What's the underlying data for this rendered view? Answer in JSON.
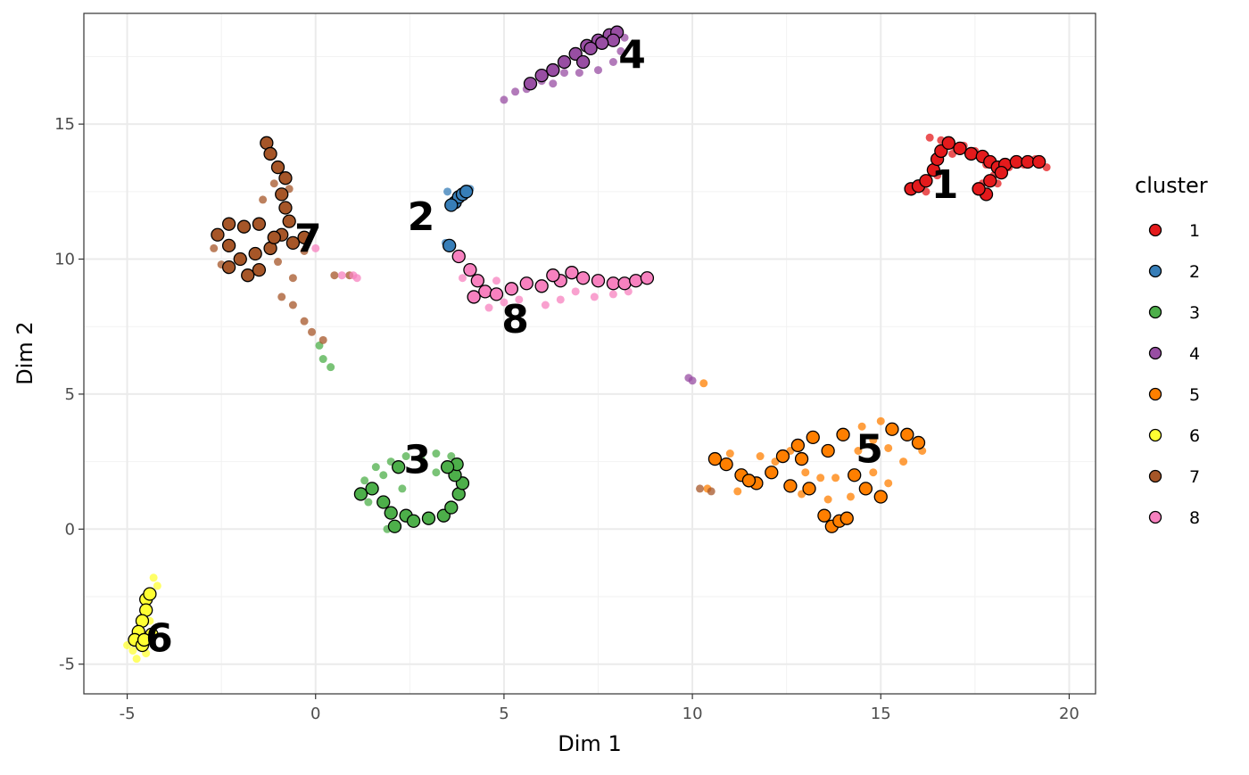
{
  "chart_data": {
    "type": "scatter",
    "title": "",
    "xlabel": "Dim 1",
    "ylabel": "Dim 2",
    "xlim": [
      -6.15,
      20.7
    ],
    "ylim": [
      -6.1,
      19.1
    ],
    "x_ticks": [
      -5,
      0,
      5,
      10,
      15,
      20
    ],
    "x_tick_labels": [
      "-5",
      "0",
      "5",
      "10",
      "15",
      "20"
    ],
    "y_ticks": [
      -5,
      0,
      5,
      10,
      15
    ],
    "y_tick_labels": [
      "-5",
      "0",
      "5",
      "10",
      "15"
    ],
    "grid": true,
    "legend": {
      "title": "cluster",
      "placement": "right"
    },
    "series": [
      {
        "name": "1",
        "color": "#E41A1C",
        "label": "1",
        "label_pos": [
          16.7,
          12.8
        ],
        "outlined": [
          [
            15.8,
            12.6
          ],
          [
            16.0,
            12.7
          ],
          [
            16.2,
            12.9
          ],
          [
            16.4,
            13.3
          ],
          [
            16.5,
            13.7
          ],
          [
            16.6,
            14.0
          ],
          [
            16.8,
            14.3
          ],
          [
            17.1,
            14.1
          ],
          [
            17.4,
            13.9
          ],
          [
            17.7,
            13.8
          ],
          [
            17.9,
            13.6
          ],
          [
            18.1,
            13.4
          ],
          [
            18.3,
            13.5
          ],
          [
            18.6,
            13.6
          ],
          [
            18.9,
            13.6
          ],
          [
            19.2,
            13.6
          ],
          [
            17.8,
            12.4
          ],
          [
            17.6,
            12.6
          ],
          [
            17.9,
            12.9
          ],
          [
            18.2,
            13.2
          ]
        ],
        "points": [
          [
            16.3,
            14.5
          ],
          [
            16.6,
            14.4
          ],
          [
            16.9,
            14.2
          ],
          [
            17.2,
            14.2
          ],
          [
            17.5,
            14.0
          ],
          [
            17.8,
            13.5
          ],
          [
            18.0,
            13.1
          ],
          [
            18.4,
            13.4
          ],
          [
            18.8,
            13.5
          ],
          [
            19.1,
            13.7
          ],
          [
            19.4,
            13.4
          ],
          [
            16.5,
            13.1
          ],
          [
            16.2,
            12.5
          ],
          [
            16.9,
            13.9
          ],
          [
            17.7,
            12.8
          ],
          [
            18.1,
            12.8
          ]
        ]
      },
      {
        "name": "2",
        "color": "#377EB8",
        "label": "2",
        "label_pos": [
          2.8,
          11.6
        ],
        "outlined": [
          [
            3.7,
            12.1
          ],
          [
            3.8,
            12.3
          ],
          [
            3.9,
            12.4
          ],
          [
            4.0,
            12.5
          ],
          [
            3.6,
            12.0
          ],
          [
            3.55,
            10.5
          ]
        ],
        "points": [
          [
            3.5,
            12.5
          ],
          [
            4.1,
            12.6
          ],
          [
            3.45,
            10.6
          ]
        ]
      },
      {
        "name": "3",
        "color": "#4DAF4A",
        "label": "3",
        "label_pos": [
          2.7,
          2.6
        ],
        "outlined": [
          [
            1.2,
            1.3
          ],
          [
            1.5,
            1.5
          ],
          [
            1.8,
            1.0
          ],
          [
            2.0,
            0.6
          ],
          [
            2.2,
            2.3
          ],
          [
            2.4,
            0.5
          ],
          [
            2.1,
            0.1
          ],
          [
            2.6,
            0.3
          ],
          [
            3.0,
            0.4
          ],
          [
            3.4,
            0.5
          ],
          [
            3.6,
            0.8
          ],
          [
            3.8,
            1.3
          ],
          [
            3.9,
            1.7
          ],
          [
            3.7,
            2.0
          ],
          [
            3.75,
            2.4
          ],
          [
            3.5,
            2.3
          ]
        ],
        "points": [
          [
            1.6,
            2.3
          ],
          [
            1.8,
            2.0
          ],
          [
            2.0,
            2.5
          ],
          [
            2.4,
            2.7
          ],
          [
            2.8,
            2.6
          ],
          [
            3.2,
            2.8
          ],
          [
            3.6,
            2.7
          ],
          [
            1.3,
            1.8
          ],
          [
            1.4,
            1.0
          ],
          [
            1.9,
            0.0
          ],
          [
            2.3,
            1.5
          ],
          [
            3.2,
            2.1
          ],
          [
            0.2,
            6.3
          ],
          [
            0.4,
            6.0
          ],
          [
            0.1,
            6.8
          ]
        ]
      },
      {
        "name": "4",
        "color": "#984EA3",
        "label": "4",
        "label_pos": [
          8.4,
          17.6
        ],
        "outlined": [
          [
            5.7,
            16.5
          ],
          [
            6.0,
            16.8
          ],
          [
            6.3,
            17.0
          ],
          [
            6.6,
            17.3
          ],
          [
            6.9,
            17.6
          ],
          [
            7.2,
            17.9
          ],
          [
            7.5,
            18.1
          ],
          [
            7.8,
            18.3
          ],
          [
            8.0,
            18.4
          ],
          [
            7.9,
            18.1
          ],
          [
            7.6,
            18.0
          ],
          [
            7.3,
            17.8
          ],
          [
            7.1,
            17.3
          ]
        ],
        "points": [
          [
            5.0,
            15.9
          ],
          [
            5.3,
            16.2
          ],
          [
            5.6,
            16.3
          ],
          [
            6.0,
            16.6
          ],
          [
            6.6,
            16.9
          ],
          [
            7.0,
            16.9
          ],
          [
            7.5,
            17.0
          ],
          [
            7.9,
            17.3
          ],
          [
            8.1,
            17.7
          ],
          [
            8.2,
            18.2
          ],
          [
            6.3,
            16.5
          ],
          [
            9.9,
            5.6
          ],
          [
            10.0,
            5.5
          ]
        ]
      },
      {
        "name": "5",
        "color": "#FF7F00",
        "label": "5",
        "label_pos": [
          14.7,
          3.0
        ],
        "outlined": [
          [
            10.6,
            2.6
          ],
          [
            10.9,
            2.4
          ],
          [
            11.3,
            2.0
          ],
          [
            11.7,
            1.7
          ],
          [
            12.1,
            2.1
          ],
          [
            12.4,
            2.7
          ],
          [
            12.8,
            3.1
          ],
          [
            13.2,
            3.4
          ],
          [
            13.6,
            2.9
          ],
          [
            14.0,
            3.5
          ],
          [
            14.3,
            2.0
          ],
          [
            14.6,
            1.5
          ],
          [
            15.0,
            1.2
          ],
          [
            15.3,
            3.7
          ],
          [
            15.7,
            3.5
          ],
          [
            16.0,
            3.2
          ],
          [
            13.5,
            0.5
          ],
          [
            13.7,
            0.1
          ],
          [
            13.9,
            0.3
          ],
          [
            14.1,
            0.4
          ],
          [
            13.1,
            1.5
          ],
          [
            12.6,
            1.6
          ],
          [
            11.5,
            1.8
          ],
          [
            12.9,
            2.6
          ]
        ],
        "points": [
          [
            11.0,
            2.8
          ],
          [
            11.8,
            2.7
          ],
          [
            12.2,
            2.5
          ],
          [
            12.6,
            2.9
          ],
          [
            13.0,
            2.1
          ],
          [
            13.4,
            1.9
          ],
          [
            14.4,
            2.9
          ],
          [
            14.8,
            3.3
          ],
          [
            15.2,
            3.0
          ],
          [
            15.6,
            2.5
          ],
          [
            15.2,
            1.7
          ],
          [
            14.8,
            2.1
          ],
          [
            14.5,
            3.8
          ],
          [
            15.0,
            4.0
          ],
          [
            12.9,
            1.3
          ],
          [
            13.6,
            1.1
          ],
          [
            13.8,
            1.9
          ],
          [
            11.2,
            1.4
          ],
          [
            10.4,
            1.5
          ],
          [
            16.1,
            2.9
          ],
          [
            14.2,
            1.2
          ],
          [
            10.3,
            5.4
          ]
        ]
      },
      {
        "name": "6",
        "color": "#FFFF33",
        "label": "6",
        "label_pos": [
          -4.15,
          -4.0
        ],
        "outlined": [
          [
            -4.5,
            -2.6
          ],
          [
            -4.4,
            -2.4
          ],
          [
            -4.5,
            -3.0
          ],
          [
            -4.6,
            -3.4
          ],
          [
            -4.7,
            -3.8
          ],
          [
            -4.8,
            -4.1
          ],
          [
            -4.6,
            -4.3
          ],
          [
            -4.35,
            -3.9
          ],
          [
            -4.55,
            -4.1
          ]
        ],
        "points": [
          [
            -4.3,
            -1.8
          ],
          [
            -4.2,
            -2.1
          ],
          [
            -4.5,
            -4.6
          ],
          [
            -4.75,
            -4.8
          ],
          [
            -4.85,
            -4.5
          ],
          [
            -5.0,
            -4.3
          ],
          [
            -4.4,
            -3.4
          ]
        ]
      },
      {
        "name": "7",
        "color": "#A65628",
        "label": "7",
        "label_pos": [
          -0.2,
          10.8
        ],
        "outlined": [
          [
            -1.3,
            14.3
          ],
          [
            -1.2,
            13.9
          ],
          [
            -1.0,
            13.4
          ],
          [
            -0.8,
            13.0
          ],
          [
            -0.9,
            12.4
          ],
          [
            -0.8,
            11.9
          ],
          [
            -0.7,
            11.4
          ],
          [
            -0.9,
            10.9
          ],
          [
            -1.2,
            10.4
          ],
          [
            -1.6,
            10.2
          ],
          [
            -2.0,
            10.0
          ],
          [
            -2.3,
            9.7
          ],
          [
            -1.8,
            9.4
          ],
          [
            -1.5,
            9.6
          ],
          [
            -1.1,
            10.8
          ],
          [
            -1.5,
            11.3
          ],
          [
            -1.9,
            11.2
          ],
          [
            -2.3,
            11.3
          ],
          [
            -2.6,
            10.9
          ],
          [
            -2.3,
            10.5
          ],
          [
            -0.6,
            10.6
          ],
          [
            -0.3,
            10.8
          ]
        ],
        "points": [
          [
            -1.1,
            12.8
          ],
          [
            -1.4,
            12.2
          ],
          [
            -0.7,
            12.6
          ],
          [
            -1.0,
            9.9
          ],
          [
            -0.6,
            9.3
          ],
          [
            -0.9,
            8.6
          ],
          [
            -0.6,
            8.3
          ],
          [
            -0.3,
            7.7
          ],
          [
            -0.1,
            7.3
          ],
          [
            0.2,
            7.0
          ],
          [
            0.5,
            9.4
          ],
          [
            0.9,
            9.4
          ],
          [
            -2.7,
            10.4
          ],
          [
            -2.5,
            9.8
          ],
          [
            -0.3,
            10.3
          ],
          [
            10.2,
            1.5
          ],
          [
            10.5,
            1.4
          ]
        ]
      },
      {
        "name": "8",
        "color": "#F781BF",
        "label": "8",
        "label_pos": [
          5.3,
          7.8
        ],
        "outlined": [
          [
            3.8,
            10.1
          ],
          [
            4.1,
            9.6
          ],
          [
            4.3,
            9.2
          ],
          [
            4.5,
            8.8
          ],
          [
            4.8,
            8.7
          ],
          [
            5.2,
            8.9
          ],
          [
            5.6,
            9.1
          ],
          [
            6.0,
            9.0
          ],
          [
            6.5,
            9.2
          ],
          [
            6.8,
            9.5
          ],
          [
            7.1,
            9.3
          ],
          [
            7.5,
            9.2
          ],
          [
            7.9,
            9.1
          ],
          [
            8.2,
            9.1
          ],
          [
            8.5,
            9.2
          ],
          [
            8.8,
            9.3
          ],
          [
            6.3,
            9.4
          ],
          [
            4.2,
            8.6
          ]
        ],
        "points": [
          [
            4.6,
            8.2
          ],
          [
            5.0,
            8.4
          ],
          [
            5.4,
            8.5
          ],
          [
            6.1,
            8.3
          ],
          [
            6.5,
            8.5
          ],
          [
            6.9,
            8.8
          ],
          [
            7.4,
            8.6
          ],
          [
            7.9,
            8.7
          ],
          [
            8.3,
            8.8
          ],
          [
            3.9,
            9.3
          ],
          [
            0.7,
            9.4
          ],
          [
            1.0,
            9.4
          ],
          [
            1.1,
            9.3
          ],
          [
            0.0,
            10.4
          ],
          [
            4.8,
            9.2
          ]
        ]
      }
    ]
  }
}
